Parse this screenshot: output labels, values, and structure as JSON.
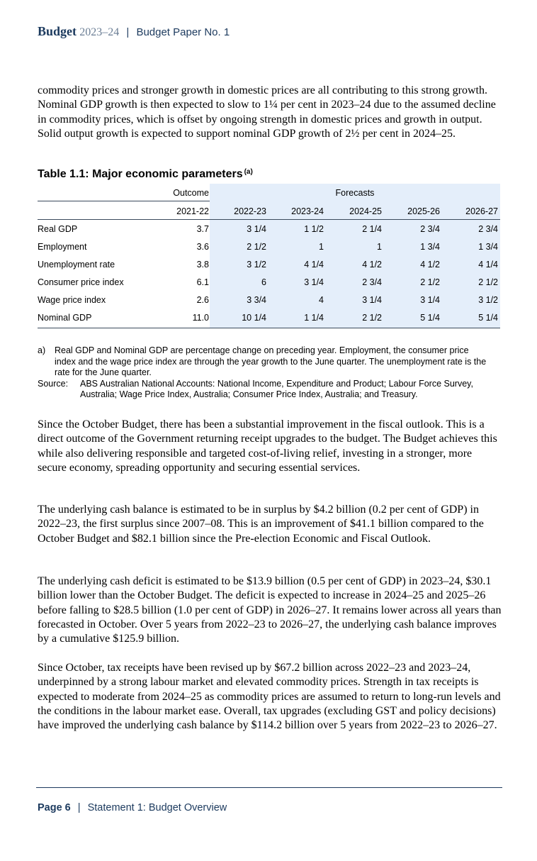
{
  "header": {
    "brand": "Budget",
    "years": "2023–24",
    "separator": "|",
    "paper": "Budget Paper No. 1"
  },
  "paragraphs": {
    "intro": "commodity prices and stronger growth in domestic prices are all contributing to this strong growth. Nominal GDP growth is then expected to slow to 1¼ per cent in 2023–24 due to the assumed decline in commodity prices, which is offset by ongoing strength in domestic prices and growth in output. Solid output growth is expected to support nominal GDP growth of 2½ per cent in 2024–25.",
    "p1": "Since the October Budget, there has been a substantial improvement in the fiscal outlook. This is a direct outcome of the Government returning receipt upgrades to the budget. The Budget achieves this while also delivering responsible and targeted cost-of-living relief, investing in a stronger, more secure economy, spreading opportunity and securing essential services.",
    "p2": "The underlying cash balance is estimated to be in surplus by $4.2 billion (0.2 per cent of GDP) in 2022–23, the first surplus since 2007–08. This is an improvement of $41.1 billion compared to the October Budget and $82.1 billion since the Pre-election Economic and Fiscal Outlook.",
    "p3": "The underlying cash deficit is estimated to be $13.9 billion (0.5 per cent of GDP) in 2023–24, $30.1 billion lower than the October Budget. The deficit is expected to increase in 2024–25 and 2025–26 before falling to $28.5 billion (1.0 per cent of GDP) in 2026–27. It remains lower across all years than forecasted in October. Over 5 years from 2022–23 to 2026–27, the underlying cash balance improves by a cumulative $125.9 billion.",
    "p4": "Since October, tax receipts have been revised up by $67.2 billion across 2022–23 and 2023–24, underpinned by a strong labour market and elevated commodity prices. Strength in tax receipts is expected to moderate from 2024–25 as commodity prices are assumed to return to long-run levels and the conditions in the labour market ease. Overall, tax upgrades (excluding GST and policy decisions) have improved the underlying cash balance by $114.2 billion over 5 years from 2022–23 to 2026–27."
  },
  "table": {
    "title": "Table 1.1: Major economic parameters",
    "title_note": "(a)",
    "outcome_label": "Outcome",
    "forecasts_label": "Forecasts",
    "years": [
      "2021-22",
      "2022-23",
      "2023-24",
      "2024-25",
      "2025-26",
      "2026-27"
    ],
    "rows": [
      {
        "label": "Real GDP",
        "values": [
          "3.7",
          "3 1/4",
          "1 1/2",
          "2 1/4",
          "2 3/4",
          "2 3/4"
        ]
      },
      {
        "label": "Employment",
        "values": [
          "3.6",
          "2 1/2",
          "1",
          "1",
          "1 3/4",
          "1 3/4"
        ]
      },
      {
        "label": "Unemployment rate",
        "values": [
          "3.8",
          "3 1/2",
          "4 1/4",
          "4 1/2",
          "4 1/2",
          "4 1/4"
        ]
      },
      {
        "label": "Consumer price index",
        "values": [
          "6.1",
          "6",
          "3 1/4",
          "2 3/4",
          "2 1/2",
          "2 1/2"
        ]
      },
      {
        "label": "Wage price index",
        "values": [
          "2.6",
          "3 3/4",
          "4",
          "3 1/4",
          "3 1/4",
          "3 1/2"
        ]
      },
      {
        "label": "Nominal GDP",
        "values": [
          "11.0",
          "10 1/4",
          "1 1/4",
          "2 1/2",
          "5 1/4",
          "5 1/4"
        ]
      }
    ]
  },
  "notes": {
    "a_tag": "a)",
    "a_text": "Real GDP and Nominal GDP are percentage change on preceding year. Employment, the consumer price index and the wage price index are through the year growth to the June quarter. The unemployment rate is the rate for the June quarter.",
    "source_tag": "Source:",
    "source_text": "ABS Australian National Accounts: National Income, Expenditure and Product; Labour Force Survey, Australia; Wage Price Index, Australia; Consumer Price Index, Australia; and Treasury."
  },
  "footer": {
    "page": "Page 6",
    "separator": "|",
    "section": "Statement 1: Budget Overview"
  },
  "colors": {
    "navy": "#1c3a5e",
    "forecast_shade": "#e4eefa"
  }
}
